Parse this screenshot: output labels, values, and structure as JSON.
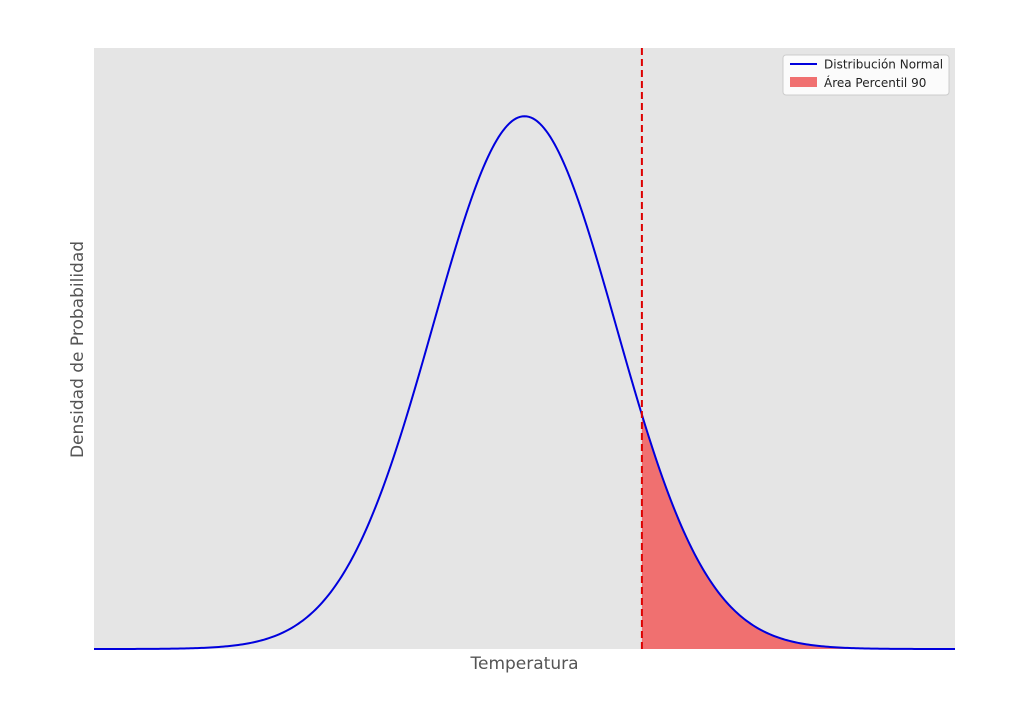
{
  "chart_data": {
    "type": "area",
    "title": "",
    "xlabel": "Temperatura",
    "ylabel": "Densidad de Probabilidad",
    "grid": false,
    "legend_position": "top-right",
    "xlim": [
      -4.2,
      5.2
    ],
    "ylim": [
      0,
      0.45
    ],
    "distribution": {
      "family": "normal",
      "mean": 0.5,
      "std": 1.0
    },
    "percentile": 90,
    "percentile_value": 1.7816,
    "x_ticks_shown": false,
    "y_ticks_shown": false,
    "series": [
      {
        "name": "Distribución Normal",
        "kind": "line",
        "color": "#0000dd"
      },
      {
        "name": "Área Percentil 90",
        "kind": "area",
        "color": "#f07070"
      }
    ],
    "threshold_line": {
      "style": "dashed",
      "color": "#dd0000"
    },
    "background_color": "#e5e5e5"
  }
}
